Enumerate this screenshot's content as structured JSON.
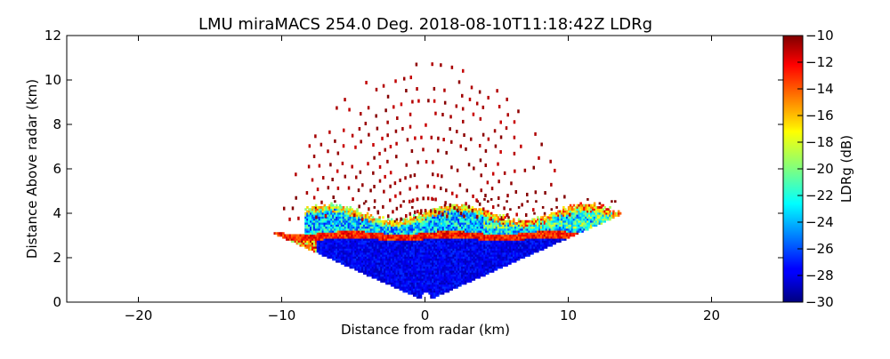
{
  "chart_data": {
    "type": "heatmap",
    "title": "LMU miraMACS 254.0 Deg. 2018-08-10T11:18:42Z  LDRg",
    "xlabel": "Distance from radar (km)",
    "ylabel": "Distance Above radar  (km)",
    "xlim": [
      -25,
      25
    ],
    "ylim": [
      0,
      12
    ],
    "x_ticks": [
      -20,
      -10,
      0,
      10,
      20
    ],
    "x_tick_labels": [
      "−20",
      "−10",
      "0",
      "10",
      "20"
    ],
    "y_ticks": [
      0,
      2,
      4,
      6,
      8,
      10,
      12
    ],
    "y_tick_labels": [
      "0",
      "2",
      "4",
      "6",
      "8",
      "10",
      "12"
    ],
    "colorbar": {
      "label": "LDRg (dB)",
      "range": [
        -30,
        -10
      ],
      "colormap": "jet",
      "ticks": [
        -30,
        -28,
        -26,
        -24,
        -22,
        -20,
        -18,
        -16,
        -14,
        -12,
        -10
      ],
      "tick_labels": [
        "−30",
        "−28",
        "−26",
        "−24",
        "−22",
        "−20",
        "−18",
        "−16",
        "−14",
        "−12",
        "−10"
      ]
    },
    "scan_elevation_range_deg": [
      16,
      164
    ],
    "max_range_km": 11.2,
    "layers": [
      {
        "description_value": "low-level cloud/rain region",
        "top_km": 3.0,
        "ldr_db": -29
      },
      {
        "description_value": "melting layer bright band",
        "height_km": 2.9,
        "ldr_db": -14
      },
      {
        "description_value": "upper cloud layer",
        "bottom_km": 3.2,
        "top_km": 4.2,
        "ldr_db": -24
      },
      {
        "description_value": "sparse noise speckles above",
        "ldr_db": -10
      }
    ]
  }
}
